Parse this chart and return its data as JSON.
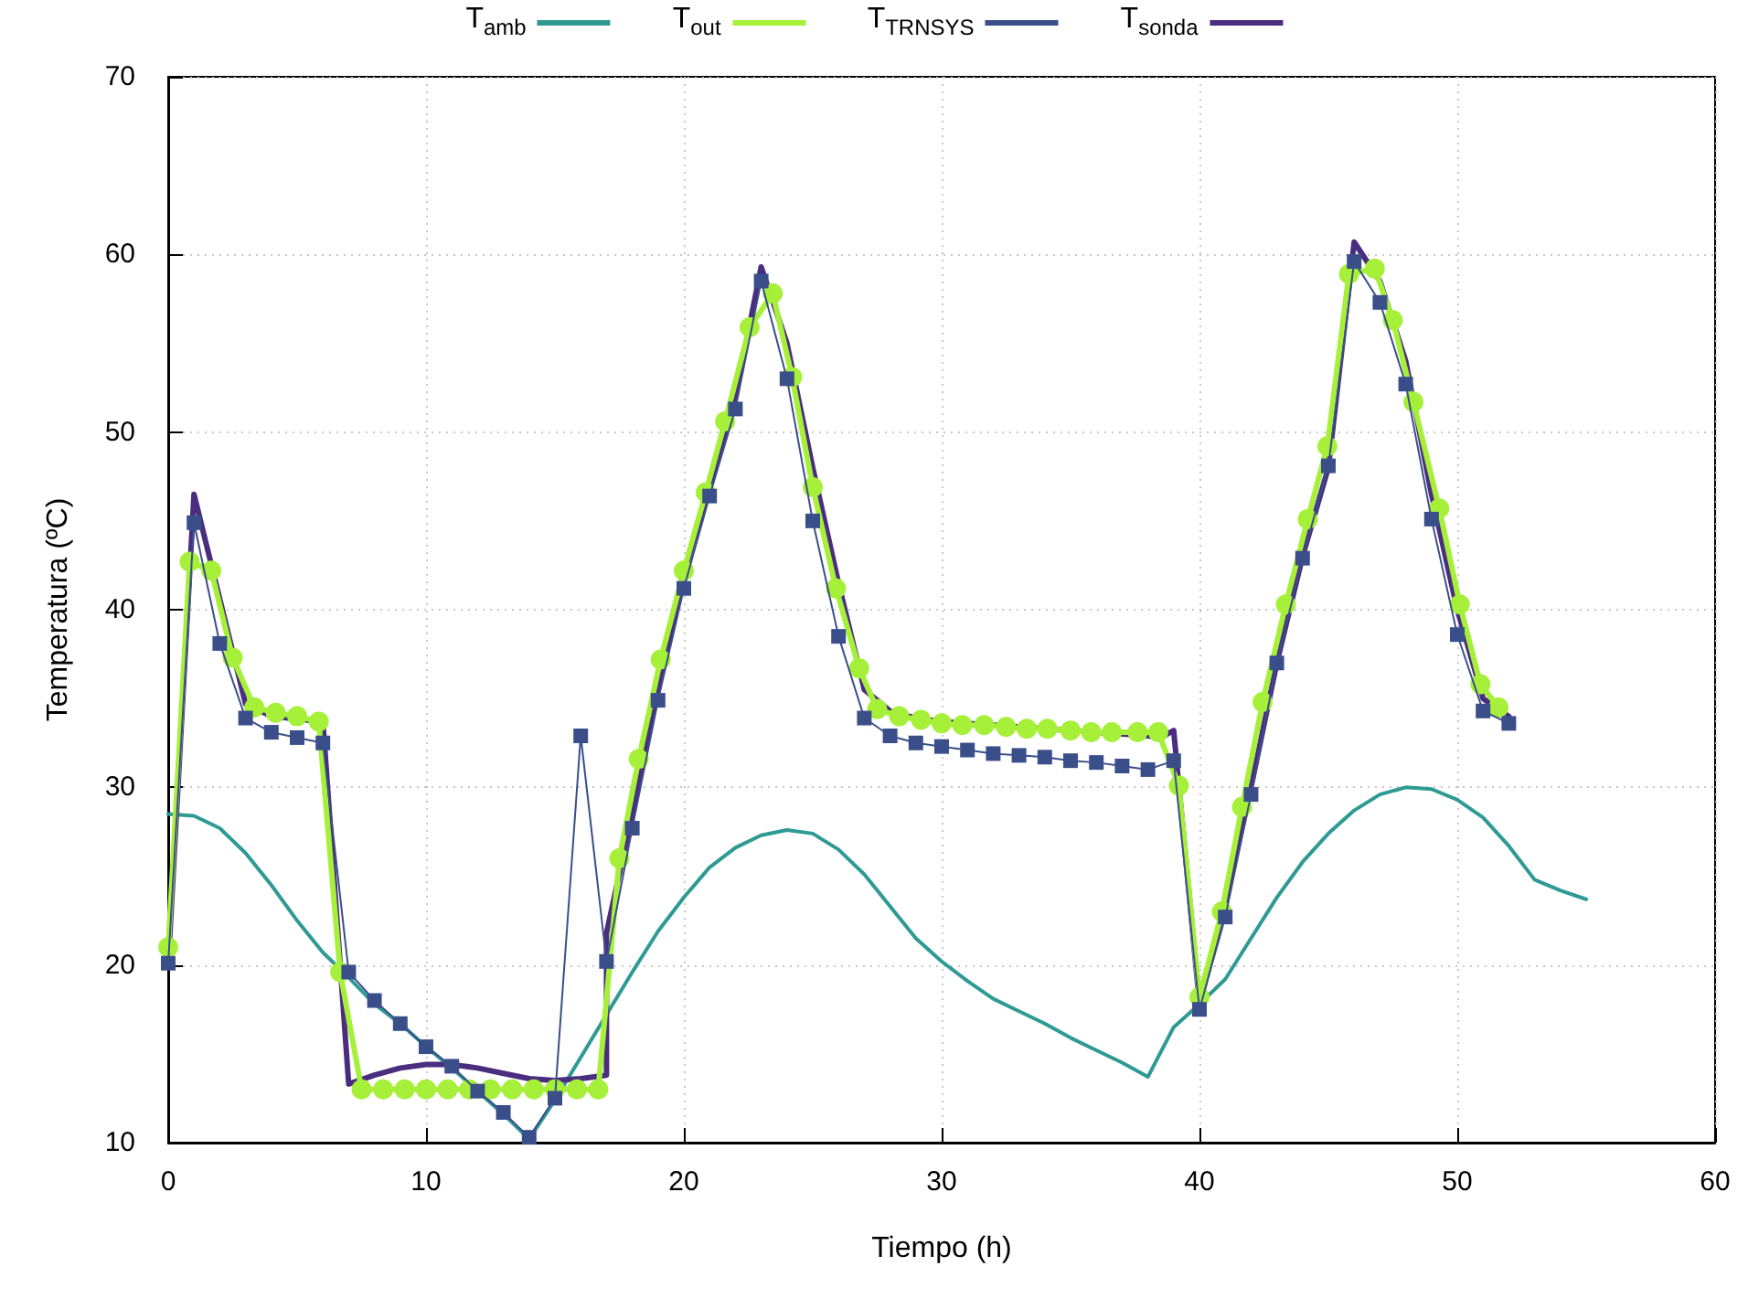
{
  "chart_data": {
    "type": "line",
    "xlabel": "Tiempo (h)",
    "ylabel": "Temperatura (ºC)",
    "xlim": [
      0,
      60
    ],
    "xticks": [
      0,
      10,
      20,
      30,
      40,
      50,
      60
    ],
    "ylim": [
      10,
      70
    ],
    "yticks": [
      10,
      20,
      30,
      40,
      50,
      60,
      70
    ],
    "grid": true,
    "legend": "top",
    "line_style": "solid",
    "series": [
      {
        "name": "T$_{amb}$",
        "color": "#2e9a94",
        "marker": "none",
        "x": [
          0,
          1,
          2,
          3,
          4,
          5,
          6,
          7,
          8,
          9,
          10,
          11,
          12,
          13,
          14,
          15,
          16,
          17,
          18,
          19,
          20,
          21,
          22,
          23,
          24,
          25,
          26,
          27,
          28,
          29,
          30,
          31,
          32,
          33,
          34,
          35,
          36,
          37,
          38,
          39,
          40,
          41,
          42,
          43,
          44,
          45,
          46,
          47,
          48,
          49,
          50,
          51,
          52,
          53,
          54,
          55
        ],
        "values": [
          28.5,
          28.4,
          27.7,
          26.3,
          24.5,
          22.5,
          20.7,
          19.3,
          17.8,
          16.7,
          15.4,
          14.2,
          12.9,
          11.6,
          10.2,
          12.4,
          14.8,
          17.2,
          19.6,
          21.9,
          23.8,
          25.5,
          26.6,
          27.3,
          27.6,
          27.4,
          26.5,
          25.1,
          23.3,
          21.5,
          20.2,
          19.1,
          18.1,
          17.4,
          16.7,
          15.9,
          15.2,
          14.5,
          13.7,
          16.5,
          17.8,
          19.2,
          21.5,
          23.8,
          25.8,
          27.4,
          28.7,
          29.6,
          30,
          29.9,
          29.3,
          28.3,
          26.7,
          24.8,
          24.2,
          23.7
        ]
      },
      {
        "name": "T$_{out}$",
        "color": "#a6f03a",
        "marker": "circle",
        "x": [
          0,
          0.83,
          1.67,
          2.5,
          3.34,
          4.17,
          5,
          5.84,
          6.67,
          7.5,
          8.34,
          9.17,
          10,
          10.84,
          11.68,
          12.5,
          13.34,
          14.18,
          15,
          15.85,
          16.68,
          17.5,
          18.25,
          19.1,
          20,
          20.85,
          21.6,
          22.55,
          23.45,
          24.2,
          25,
          25.9,
          26.8,
          27.5,
          28.35,
          29.2,
          30,
          30.8,
          31.65,
          32.5,
          33.3,
          34.1,
          35,
          35.8,
          36.6,
          37.6,
          38.4,
          39.2,
          40,
          40.87,
          41.65,
          42.45,
          43.35,
          44.2,
          44.96,
          45.8,
          46.8,
          47.5,
          48.3,
          49.3,
          50.1,
          50.9,
          51.6
        ],
        "values": [
          21,
          42.7,
          42.2,
          37.3,
          34.5,
          34.2,
          34,
          33.7,
          19.6,
          13,
          13,
          13,
          13,
          13,
          13,
          13,
          13,
          13,
          13,
          13,
          13,
          26,
          31.6,
          37.2,
          42.2,
          46.6,
          50.6,
          55.9,
          57.8,
          53.1,
          46.9,
          41.2,
          36.7,
          34.4,
          34,
          33.8,
          33.6,
          33.5,
          33.5,
          33.4,
          33.3,
          33.3,
          33.2,
          33.1,
          33.1,
          33.1,
          33.1,
          30.1,
          18.2,
          23,
          28.9,
          34.8,
          40.3,
          45.1,
          49.2,
          58.9,
          59.2,
          56.3,
          51.7,
          45.7,
          40.3,
          35.8,
          34.5
        ]
      },
      {
        "name": "T$_{TRNSYS}$",
        "color": "#3a4f8a",
        "marker": "square",
        "x": [
          0,
          1,
          2,
          3,
          4,
          5,
          6,
          7,
          8,
          9,
          10,
          11,
          12,
          13,
          14,
          15,
          16,
          17,
          18,
          19,
          20,
          21,
          22,
          23,
          24,
          25,
          26,
          27,
          28,
          29,
          30,
          31,
          32,
          33,
          34,
          35,
          36,
          37,
          38,
          39,
          40,
          41,
          42,
          43,
          44,
          45,
          46,
          47,
          48,
          49,
          50,
          51,
          52
        ],
        "values": [
          20.1,
          44.9,
          38.1,
          33.9,
          33.1,
          32.8,
          32.5,
          19.6,
          18,
          16.7,
          15.4,
          14.3,
          12.9,
          11.7,
          10.3,
          12.5,
          32.9,
          20.2,
          27.7,
          34.9,
          41.2,
          46.4,
          51.3,
          58.5,
          53,
          45,
          38.5,
          33.9,
          32.9,
          32.5,
          32.3,
          32.1,
          31.9,
          31.8,
          31.7,
          31.5,
          31.4,
          31.2,
          31,
          31.5,
          17.5,
          22.7,
          29.6,
          37,
          42.9,
          48.1,
          59.6,
          57.3,
          52.7,
          45.1,
          38.6,
          34.3,
          33.6
        ]
      },
      {
        "name": "T$_{sonda}$",
        "color": "#4b2d7f",
        "marker": "none",
        "x": [
          0,
          1,
          3,
          4,
          6,
          7,
          8,
          9,
          10,
          11,
          12,
          13,
          14,
          15,
          16,
          17,
          17,
          18,
          19,
          20,
          21,
          22,
          23,
          24,
          25,
          26,
          27,
          28,
          29,
          30,
          32,
          34,
          36,
          38,
          38.5,
          39,
          40,
          41,
          42,
          43,
          44,
          45,
          46,
          47,
          48,
          49,
          50,
          51,
          52
        ],
        "values": [
          20,
          46.5,
          34.7,
          34,
          33.7,
          13.3,
          13.8,
          14.2,
          14.4,
          14.4,
          14.2,
          13.9,
          13.6,
          13.5,
          13.6,
          13.8,
          21.8,
          28.5,
          35.5,
          42,
          47,
          52,
          59.3,
          55,
          48,
          41.5,
          35.5,
          34.3,
          33.9,
          33.7,
          33.5,
          33.3,
          33.1,
          32.9,
          32.8,
          33.2,
          17.8,
          23.5,
          30,
          37,
          43,
          48,
          60.7,
          58.5,
          54,
          46.5,
          40,
          35,
          34
        ]
      }
    ]
  }
}
